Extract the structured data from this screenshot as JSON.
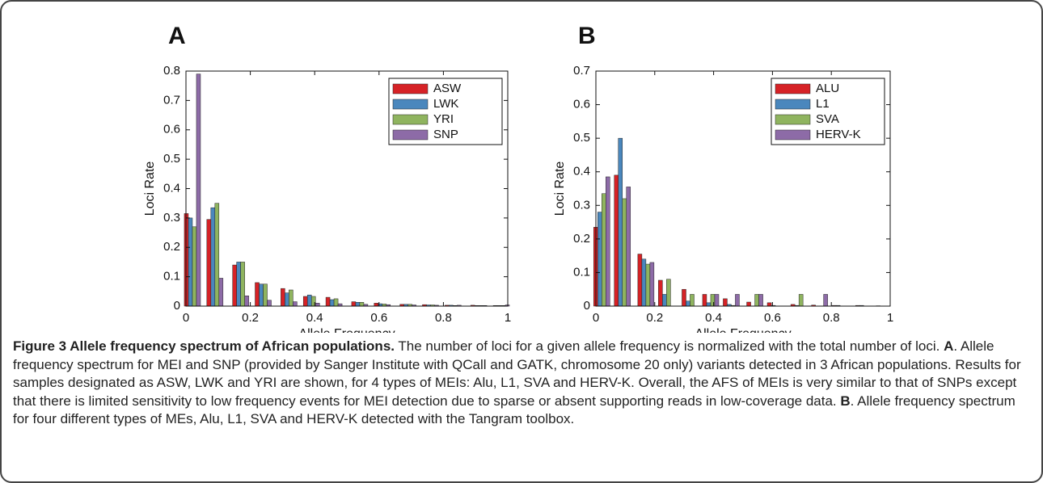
{
  "chart_data": [
    {
      "type": "bar",
      "panel": "A",
      "xlabel": "Allele Frequency",
      "ylabel": "Loci Rate",
      "x": [
        0.02,
        0.09,
        0.17,
        0.24,
        0.32,
        0.39,
        0.46,
        0.54,
        0.61,
        0.69,
        0.76,
        0.83,
        0.91,
        0.98
      ],
      "xlim": [
        0,
        1
      ],
      "xticks": [
        0,
        0.2,
        0.4,
        0.6,
        0.8,
        1
      ],
      "ylim": [
        0,
        0.8
      ],
      "yticks": [
        0,
        0.1,
        0.2,
        0.3,
        0.4,
        0.5,
        0.6,
        0.7,
        0.8
      ],
      "legend": "upper right",
      "series": [
        {
          "name": "ASW",
          "color": "#d62226",
          "values": [
            0.315,
            0.295,
            0.14,
            0.08,
            0.06,
            0.033,
            0.03,
            0.015,
            0.01,
            0.006,
            0.005,
            0.003,
            0.003,
            0.002
          ]
        },
        {
          "name": "LWK",
          "color": "#4a87bd",
          "values": [
            0.3,
            0.335,
            0.15,
            0.075,
            0.045,
            0.038,
            0.022,
            0.013,
            0.008,
            0.006,
            0.004,
            0.003,
            0.002,
            0.002
          ]
        },
        {
          "name": "YRI",
          "color": "#8fb45f",
          "values": [
            0.27,
            0.35,
            0.15,
            0.075,
            0.055,
            0.033,
            0.025,
            0.013,
            0.007,
            0.006,
            0.004,
            0.002,
            0.002,
            0.002
          ]
        },
        {
          "name": "SNP",
          "color": "#8d6ba7",
          "values": [
            0.79,
            0.095,
            0.035,
            0.02,
            0.015,
            0.01,
            0.008,
            0.006,
            0.005,
            0.004,
            0.003,
            0.003,
            0.002,
            0.004
          ]
        }
      ]
    },
    {
      "type": "bar",
      "panel": "B",
      "xlabel": "Allele Frequency",
      "ylabel": "Loci Rate",
      "x": [
        0.02,
        0.09,
        0.17,
        0.24,
        0.32,
        0.39,
        0.46,
        0.54,
        0.61,
        0.69,
        0.76,
        0.83,
        0.91,
        0.98
      ],
      "xlim": [
        0,
        1
      ],
      "xticks": [
        0,
        0.2,
        0.4,
        0.6,
        0.8,
        1
      ],
      "ylim": [
        0,
        0.7
      ],
      "yticks": [
        0,
        0.1,
        0.2,
        0.3,
        0.4,
        0.5,
        0.6,
        0.7
      ],
      "legend": "upper right",
      "series": [
        {
          "name": "ALU",
          "color": "#d62226",
          "values": [
            0.235,
            0.39,
            0.155,
            0.077,
            0.05,
            0.035,
            0.022,
            0.012,
            0.01,
            0.005,
            0.003,
            0.002,
            0.002,
            0.001
          ]
        },
        {
          "name": "L1",
          "color": "#4a87bd",
          "values": [
            0.28,
            0.5,
            0.14,
            0.035,
            0.015,
            0.01,
            0.005,
            0,
            0.002,
            0.002,
            0,
            0.002,
            0.002,
            0
          ]
        },
        {
          "name": "SVA",
          "color": "#8fb45f",
          "values": [
            0.335,
            0.32,
            0.125,
            0.08,
            0.035,
            0.035,
            0.002,
            0.035,
            0,
            0.035,
            0,
            0,
            0,
            0
          ]
        },
        {
          "name": "HERV-K",
          "color": "#8d6ba7",
          "values": [
            0.385,
            0.355,
            0.13,
            0,
            0,
            0.035,
            0.035,
            0.035,
            0,
            0,
            0.035,
            0,
            0,
            0
          ]
        }
      ]
    }
  ],
  "caption": {
    "label": "Figure 3 Allele frequency spectrum of African populations.",
    "parts": [
      {
        "text": " The number of loci for a given allele frequency is normalized with the total number of loci. "
      },
      {
        "bold": "A"
      },
      {
        "text": ". Allele frequency spectrum for MEI and SNP (provided by Sanger Institute with QCall and GATK, chromosome 20 only) variants detected in 3 African populations. Results for samples designated as ASW, LWK and YRI are shown, for 4 types of MEIs: Alu, L1, SVA and HERV-K. Overall, the AFS of MEIs is very similar to that of SNPs except that there is limited sensitivity to low frequency events for MEI detection due to sparse or absent supporting reads in low-coverage data. "
      },
      {
        "bold": "B"
      },
      {
        "text": ". Allele frequency spectrum for four different types of MEs, Alu, L1, SVA and HERV-K detected with the Tangram toolbox."
      }
    ]
  }
}
